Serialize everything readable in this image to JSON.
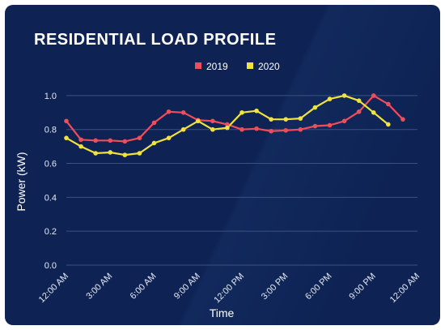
{
  "colors": {
    "background": "#0e2354",
    "grid": "#3a5280",
    "series_2019": "#ef4d5a",
    "series_2020": "#f1e23e"
  },
  "chart_data": {
    "type": "line",
    "title": "RESIDENTIAL LOAD PROFILE",
    "xlabel": "Time",
    "ylabel": "Power (kW)",
    "ylim": [
      0.0,
      1.1
    ],
    "yticks": [
      "0.0",
      "0.2",
      "0.4",
      "0.6",
      "0.8",
      "1.0"
    ],
    "ytick_values": [
      0.0,
      0.2,
      0.4,
      0.6,
      0.8,
      1.0
    ],
    "x_hours_min": 0,
    "x_hours_max": 24,
    "xticks": [
      "12:00 AM",
      "3:00 AM",
      "6:00 AM",
      "9:00 AM",
      "12:00 PM",
      "3:00 PM",
      "6:00 PM",
      "9:00 PM",
      "12:00 AM"
    ],
    "xtick_hours": [
      0,
      3,
      6,
      9,
      12,
      15,
      18,
      21,
      24
    ],
    "grid": "horizontal",
    "legend_position": "top",
    "series": [
      {
        "name": "2019",
        "x": [
          0,
          1,
          2,
          3,
          4,
          5,
          6,
          7,
          8,
          9,
          10,
          11,
          12,
          13,
          14,
          15,
          16,
          17,
          18,
          19,
          20,
          21,
          22,
          23
        ],
        "values": [
          0.85,
          0.74,
          0.735,
          0.735,
          0.73,
          0.75,
          0.84,
          0.905,
          0.9,
          0.855,
          0.85,
          0.83,
          0.8,
          0.805,
          0.79,
          0.795,
          0.8,
          0.82,
          0.825,
          0.85,
          0.905,
          1.0,
          0.95,
          0.86
        ]
      },
      {
        "name": "2020",
        "x": [
          0,
          1,
          2,
          3,
          4,
          5,
          6,
          7,
          8,
          9,
          10,
          11,
          12,
          13,
          14,
          15,
          16,
          17,
          18,
          19,
          20,
          21,
          22
        ],
        "values": [
          0.75,
          0.7,
          0.66,
          0.665,
          0.65,
          0.66,
          0.72,
          0.75,
          0.8,
          0.85,
          0.8,
          0.81,
          0.9,
          0.91,
          0.86,
          0.86,
          0.865,
          0.93,
          0.98,
          1.0,
          0.97,
          0.9,
          0.83
        ]
      }
    ]
  }
}
